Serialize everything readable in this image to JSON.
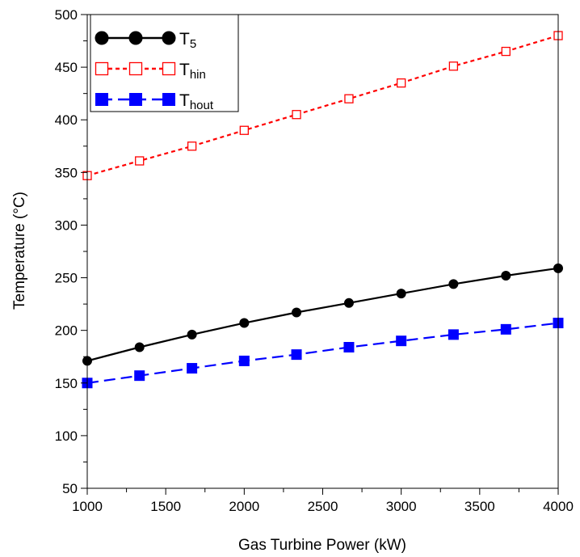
{
  "chart_data": {
    "type": "line",
    "xlabel": "Gas Turbine Power (kW)",
    "ylabel": "Temperature (°C)",
    "xlim": [
      1000,
      4000
    ],
    "ylim": [
      50,
      500
    ],
    "x_ticks": [
      1000,
      1500,
      2000,
      2500,
      3000,
      3500,
      4000
    ],
    "y_ticks": [
      50,
      100,
      150,
      200,
      250,
      300,
      350,
      400,
      450,
      500
    ],
    "x": [
      1000,
      1333,
      1667,
      2000,
      2333,
      2667,
      3000,
      3333,
      3667,
      4000
    ],
    "grid": false,
    "legend_position": "top-left",
    "series": [
      {
        "name": "T5",
        "name_base": "T",
        "name_sub": "5",
        "color": "#000000",
        "line_style": "solid",
        "marker": "filled-circle",
        "values": [
          171,
          184,
          196,
          207,
          217,
          226,
          235,
          244,
          252,
          259
        ]
      },
      {
        "name": "Thin",
        "name_base": "T",
        "name_sub": "hin",
        "color": "#ff0000",
        "line_style": "dotted",
        "marker": "open-square",
        "values": [
          347,
          361,
          375,
          390,
          405,
          420,
          435,
          451,
          465,
          480
        ]
      },
      {
        "name": "Thout",
        "name_base": "T",
        "name_sub": "hout",
        "color": "#0000ff",
        "line_style": "dashed",
        "marker": "filled-square",
        "values": [
          150,
          157,
          164,
          171,
          177,
          184,
          190,
          196,
          201,
          207
        ]
      }
    ]
  }
}
